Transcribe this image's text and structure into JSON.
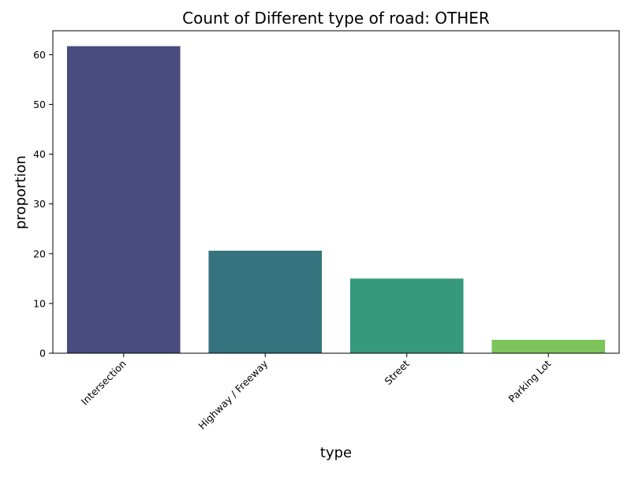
{
  "chart_data": {
    "type": "bar",
    "title": "Count of Different type of road: OTHER",
    "xlabel": "type",
    "ylabel": "proportion",
    "categories": [
      "Intersection",
      "Highway / Freeway",
      "Street",
      "Parking Lot"
    ],
    "values": [
      61.7,
      20.6,
      15.0,
      2.7
    ],
    "colors": [
      "#484c7e",
      "#35747e",
      "#36997c",
      "#7bc55b"
    ],
    "yticks": [
      0,
      10,
      20,
      30,
      40,
      50,
      60
    ],
    "ylim": [
      0,
      64.8
    ],
    "grid": false,
    "legend": false
  }
}
